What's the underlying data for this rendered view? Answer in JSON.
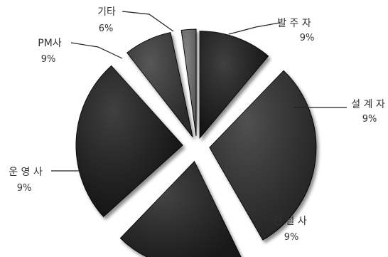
{
  "chart_data": {
    "type": "pie",
    "style": "exploded-3d",
    "slices": [
      {
        "label": "발 주 자",
        "value_label": "9%",
        "value": 9,
        "color": "#141414"
      },
      {
        "label": "설 계 자",
        "value_label": "9%",
        "value": 9,
        "color": "#2b2b2b"
      },
      {
        "label": "건 설 사",
        "value_label": "9%",
        "value": 9,
        "color": "#1e1e1e"
      },
      {
        "label": "운 영 사",
        "value_label": "9%",
        "value": 9,
        "color": "#181818"
      },
      {
        "label": "PM사",
        "value_label": "9%",
        "value": 9,
        "color": "#303030"
      },
      {
        "label": "기타",
        "value_label": "6%",
        "value": 6,
        "color": "#6a6a6a"
      }
    ]
  }
}
